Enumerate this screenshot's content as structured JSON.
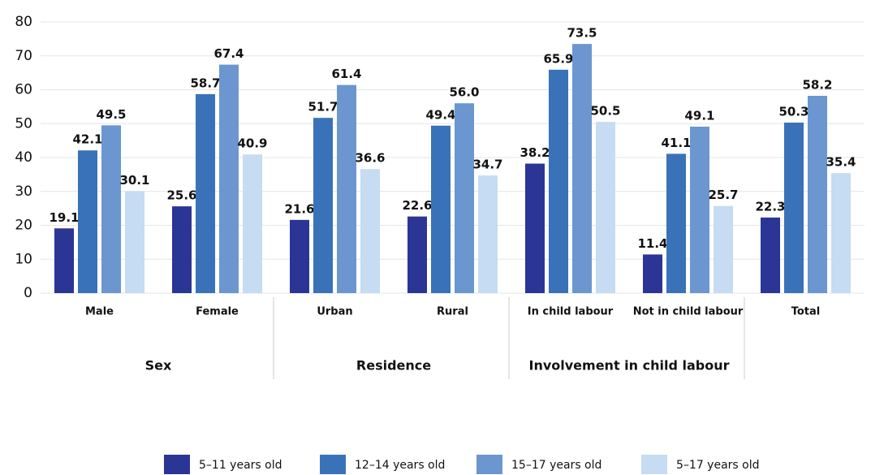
{
  "chart_data": {
    "type": "bar",
    "categories": [
      "Male",
      "Female",
      "Urban",
      "Rural",
      "In child labour",
      "Not in child labour",
      "Total"
    ],
    "group_labels": [
      "Sex",
      "Residence",
      "Involvement in child labour"
    ],
    "series": [
      {
        "name": "5–11 years old",
        "color": "#2b3595",
        "values": [
          19.1,
          25.6,
          21.6,
          22.6,
          38.2,
          11.4,
          22.3
        ],
        "value_labels": [
          "19.1",
          "25.6",
          "21.6",
          "22.6",
          "38.2",
          "11.4",
          "22.3"
        ]
      },
      {
        "name": "12–14 years old",
        "color": "#3a72b9",
        "values": [
          42.1,
          58.7,
          51.7,
          49.4,
          65.9,
          41.1,
          50.3
        ],
        "value_labels": [
          "42.1",
          "58.7",
          "51.7",
          "49.4",
          "65.9",
          "41.1",
          "50.3"
        ]
      },
      {
        "name": "15–17 years old",
        "color": "#6b96d0",
        "values": [
          49.5,
          67.4,
          61.4,
          56.0,
          73.5,
          49.1,
          58.2
        ],
        "value_labels": [
          "49.5",
          "67.4",
          "61.4",
          "56.0",
          "73.5",
          "49.1",
          "58.2"
        ]
      },
      {
        "name": "5–17 years old",
        "color": "#c5dcf2",
        "values": [
          30.1,
          40.9,
          36.6,
          34.7,
          50.5,
          25.7,
          35.4
        ],
        "value_labels": [
          "30.1",
          "40.9",
          "36.6",
          "34.7",
          "50.5",
          "25.7",
          "35.4"
        ]
      }
    ],
    "ylim": [
      0,
      80
    ],
    "yticks": [
      0,
      10,
      20,
      30,
      40,
      50,
      60,
      70,
      80
    ],
    "grid": true
  }
}
